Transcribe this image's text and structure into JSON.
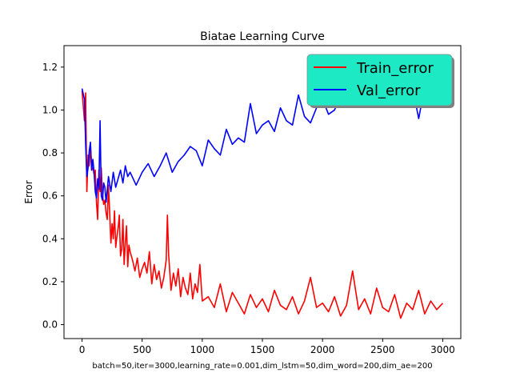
{
  "chart_data": {
    "type": "line",
    "title": "Biatae Learning Curve",
    "xlabel": "batch=50,iter=3000,learning_rate=0.001,dim_lstm=50,dim_word=200,dim_ae=200",
    "ylabel": "Error",
    "xlim": [
      -150,
      3150
    ],
    "ylim": [
      -0.065,
      1.3
    ],
    "xticks": [
      0,
      500,
      1000,
      1500,
      2000,
      2500,
      3000
    ],
    "yticks": [
      0.0,
      0.2,
      0.4,
      0.6,
      0.8,
      1.0,
      1.2
    ],
    "xtick_labels": [
      "0",
      "500",
      "1000",
      "1500",
      "2000",
      "2500",
      "3000"
    ],
    "ytick_labels": [
      "0.0",
      "0.2",
      "0.4",
      "0.6",
      "0.8",
      "1.0",
      "1.2"
    ],
    "grid": false,
    "legend": {
      "placement": "top-right",
      "background": "#1de9c4",
      "entries": [
        "Train_error",
        "Val_error"
      ]
    },
    "series": [
      {
        "name": "Train_error",
        "color": "#ff0000",
        "x": [
          0,
          20,
          30,
          40,
          50,
          60,
          70,
          80,
          90,
          100,
          110,
          120,
          130,
          140,
          150,
          160,
          170,
          180,
          190,
          200,
          210,
          220,
          230,
          240,
          250,
          260,
          270,
          280,
          290,
          300,
          310,
          320,
          330,
          340,
          350,
          360,
          370,
          380,
          390,
          400,
          420,
          440,
          460,
          480,
          500,
          520,
          540,
          560,
          580,
          600,
          620,
          640,
          660,
          680,
          700,
          710,
          720,
          740,
          760,
          780,
          800,
          820,
          840,
          860,
          880,
          900,
          920,
          940,
          960,
          980,
          1000,
          1050,
          1100,
          1150,
          1200,
          1250,
          1300,
          1350,
          1400,
          1450,
          1500,
          1550,
          1600,
          1650,
          1700,
          1750,
          1800,
          1850,
          1900,
          1950,
          2000,
          2050,
          2100,
          2150,
          2200,
          2250,
          2300,
          2350,
          2400,
          2450,
          2500,
          2550,
          2600,
          2650,
          2700,
          2750,
          2800,
          2850,
          2900,
          2950,
          3000
        ],
        "values": [
          1.09,
          0.95,
          1.08,
          0.62,
          0.79,
          0.74,
          0.84,
          0.72,
          0.73,
          0.7,
          0.72,
          0.57,
          0.49,
          0.72,
          0.62,
          0.73,
          0.61,
          0.56,
          0.58,
          0.52,
          0.49,
          0.65,
          0.52,
          0.38,
          0.47,
          0.4,
          0.53,
          0.36,
          0.41,
          0.45,
          0.51,
          0.32,
          0.35,
          0.49,
          0.28,
          0.38,
          0.46,
          0.27,
          0.37,
          0.34,
          0.3,
          0.25,
          0.31,
          0.22,
          0.26,
          0.29,
          0.24,
          0.34,
          0.19,
          0.28,
          0.21,
          0.25,
          0.17,
          0.22,
          0.3,
          0.51,
          0.33,
          0.16,
          0.24,
          0.18,
          0.26,
          0.13,
          0.22,
          0.17,
          0.14,
          0.24,
          0.12,
          0.19,
          0.15,
          0.28,
          0.11,
          0.13,
          0.08,
          0.19,
          0.06,
          0.15,
          0.1,
          0.05,
          0.14,
          0.08,
          0.12,
          0.06,
          0.16,
          0.09,
          0.07,
          0.13,
          0.05,
          0.11,
          0.22,
          0.08,
          0.1,
          0.06,
          0.13,
          0.04,
          0.09,
          0.25,
          0.07,
          0.12,
          0.05,
          0.17,
          0.08,
          0.06,
          0.14,
          0.03,
          0.1,
          0.07,
          0.16,
          0.05,
          0.11,
          0.07,
          0.1
        ]
      },
      {
        "name": "Val_error",
        "color": "#0000ff",
        "x": [
          0,
          20,
          30,
          40,
          50,
          60,
          70,
          80,
          90,
          100,
          110,
          120,
          130,
          140,
          150,
          160,
          170,
          180,
          190,
          200,
          220,
          240,
          260,
          280,
          300,
          320,
          340,
          360,
          380,
          400,
          450,
          500,
          550,
          600,
          650,
          700,
          750,
          800,
          850,
          900,
          950,
          1000,
          1050,
          1100,
          1150,
          1200,
          1250,
          1300,
          1350,
          1400,
          1450,
          1500,
          1550,
          1600,
          1650,
          1700,
          1750,
          1800,
          1850,
          1900,
          1950,
          2000,
          2050,
          2100,
          2150,
          2200,
          2250,
          2300,
          2350,
          2400,
          2450,
          2500,
          2550,
          2600,
          2650,
          2700,
          2750,
          2800,
          2850,
          2900,
          2950,
          3000
        ],
        "values": [
          1.1,
          1.05,
          0.84,
          0.69,
          0.73,
          0.81,
          0.85,
          0.72,
          0.77,
          0.71,
          0.62,
          0.59,
          0.68,
          0.63,
          0.95,
          0.6,
          0.58,
          0.66,
          0.64,
          0.57,
          0.69,
          0.62,
          0.71,
          0.64,
          0.68,
          0.72,
          0.66,
          0.74,
          0.69,
          0.71,
          0.65,
          0.71,
          0.75,
          0.69,
          0.74,
          0.8,
          0.71,
          0.76,
          0.79,
          0.83,
          0.81,
          0.74,
          0.86,
          0.82,
          0.79,
          0.91,
          0.84,
          0.87,
          0.85,
          1.03,
          0.89,
          0.93,
          0.95,
          0.9,
          1.01,
          0.95,
          0.93,
          1.07,
          0.97,
          0.94,
          1.01,
          1.05,
          0.98,
          1.0,
          1.07,
          1.02,
          1.04,
          1.06,
          1.13,
          1.03,
          1.05,
          1.1,
          1.12,
          1.09,
          1.08,
          1.15,
          1.1,
          0.96,
          1.11,
          1.13,
          1.09,
          1.1
        ]
      }
    ]
  }
}
